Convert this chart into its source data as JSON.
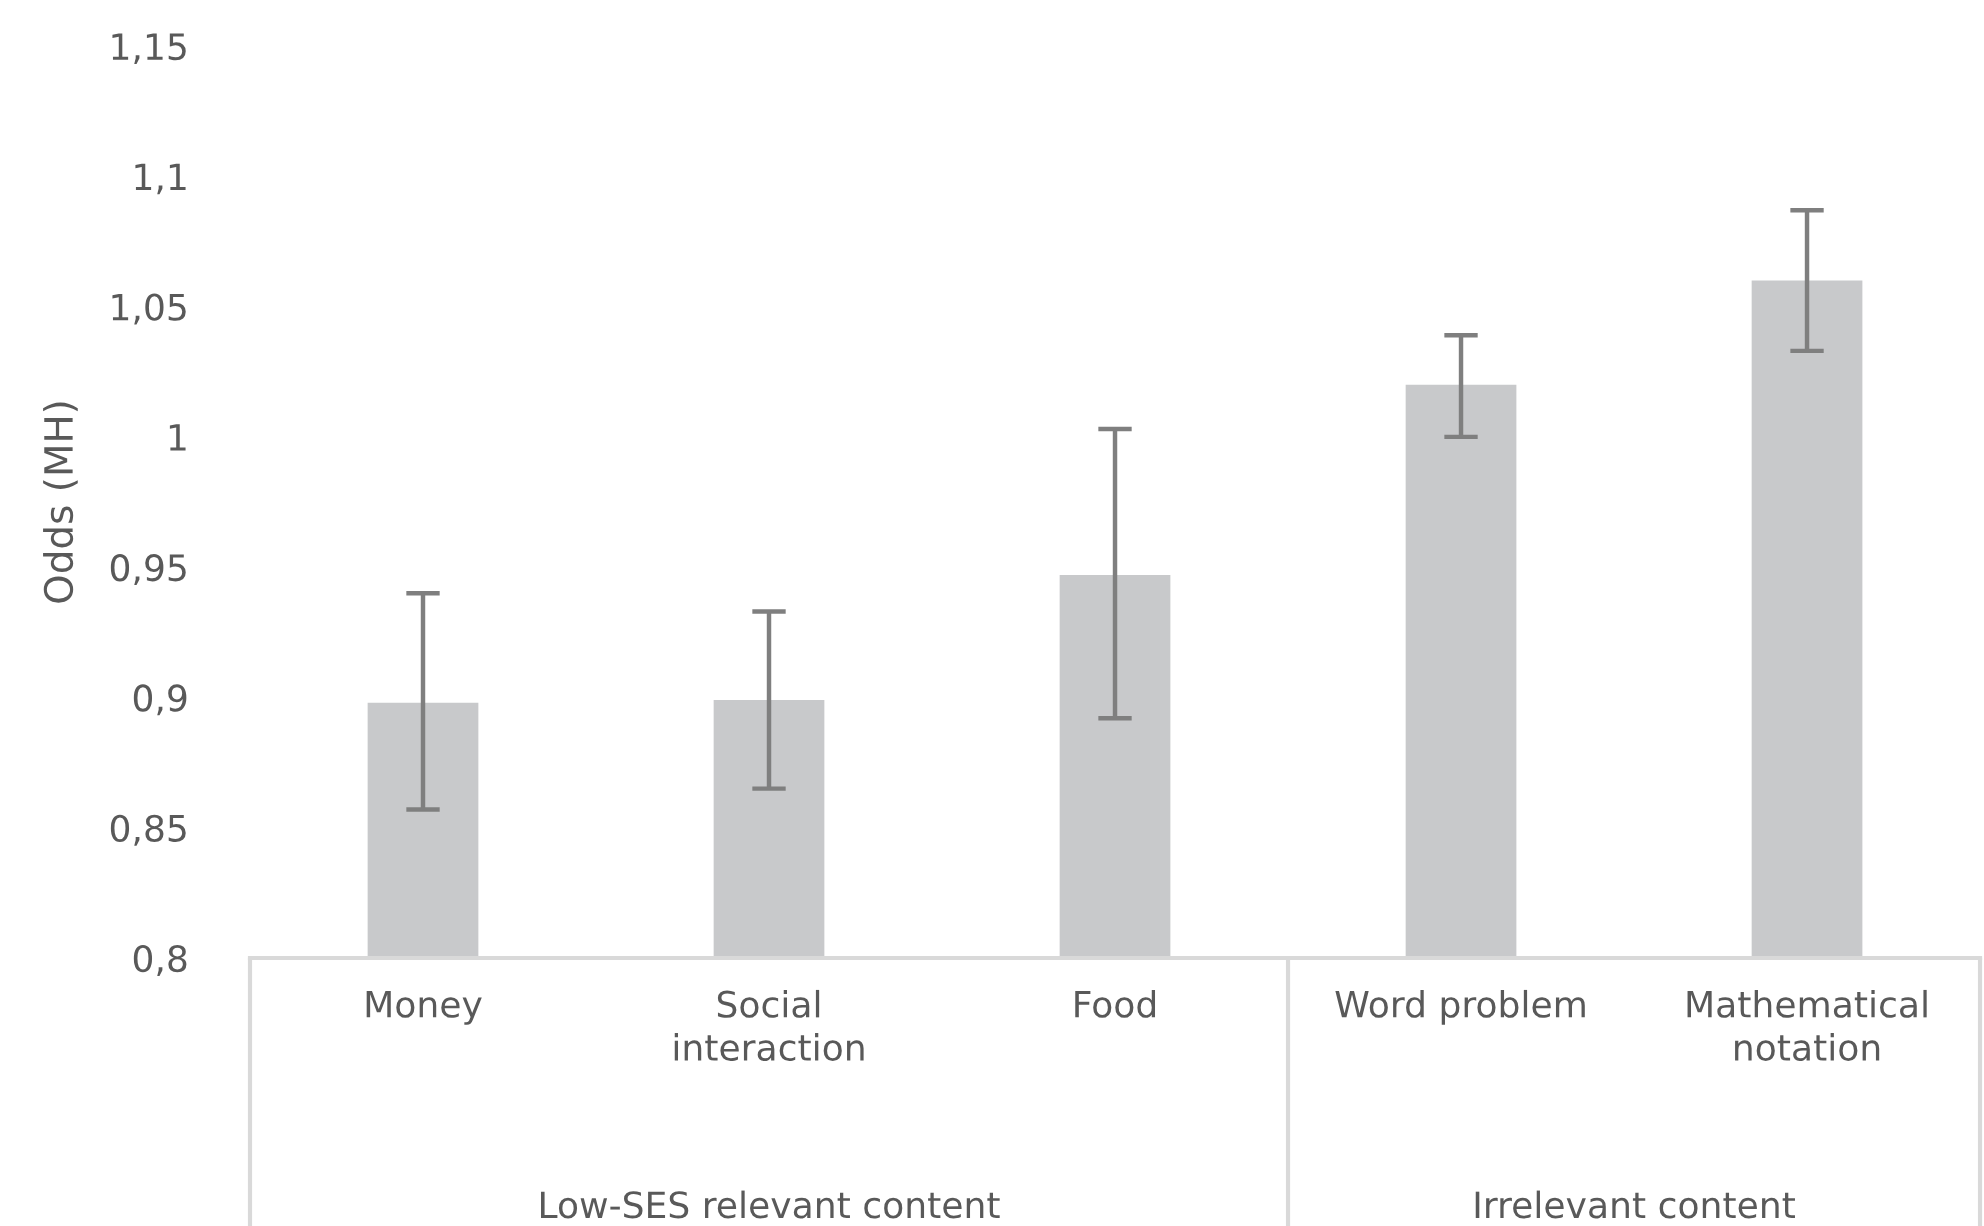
{
  "chart_data": {
    "type": "bar",
    "ylabel": "Odds (MH)",
    "categories": [
      "Money",
      "Social interaction",
      "Food",
      "Word problem",
      "Mathematical notation"
    ],
    "values": [
      0.898,
      0.899,
      0.947,
      1.02,
      1.06
    ],
    "errors": [
      [
        0.857,
        0.94
      ],
      [
        0.865,
        0.933
      ],
      [
        0.892,
        1.003
      ],
      [
        1.0,
        1.039
      ],
      [
        1.033,
        1.087
      ]
    ],
    "color": "#c8c9cb",
    "ylim": [
      0.8,
      1.15
    ],
    "yticks": [
      {
        "value": 0.8,
        "label": "0,8"
      },
      {
        "value": 0.85,
        "label": "0,85"
      },
      {
        "value": 0.9,
        "label": "0,9"
      },
      {
        "value": 0.95,
        "label": "0,95"
      },
      1,
      {
        "value": 1.05,
        "label": "1,05"
      },
      {
        "value": 1.1,
        "label": "1,1"
      },
      {
        "value": 1.15,
        "label": "1,15"
      }
    ],
    "annotations": [
      "Low-SES relevant content",
      "Irrelevant content"
    ],
    "grid": false,
    "legend": false
  }
}
